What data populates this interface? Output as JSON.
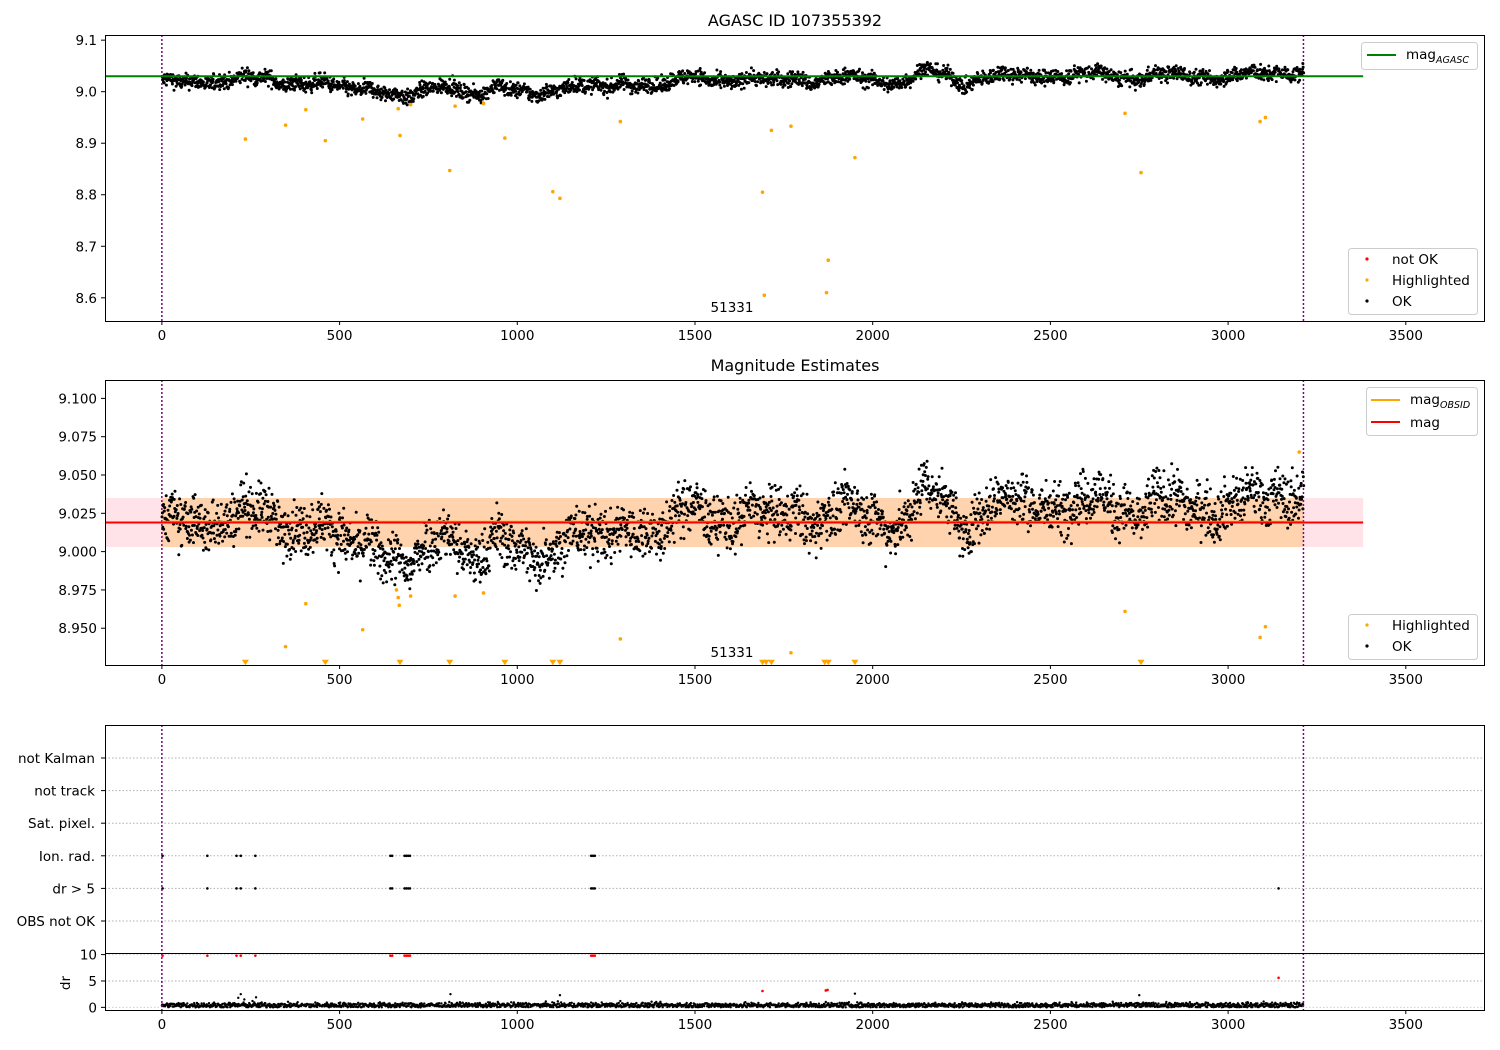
{
  "chart_data": [
    {
      "type": "scatter",
      "title": "AGASC ID 107355392",
      "xlim": [
        -160,
        3720
      ],
      "ylim": [
        8.555,
        9.11
      ],
      "xticks": [
        0,
        500,
        1000,
        1500,
        2000,
        2500,
        3000,
        3500
      ],
      "yticks": [
        8.6,
        8.7,
        8.8,
        8.9,
        9.0,
        9.1
      ],
      "ytick_labels": [
        "8.6",
        "8.7",
        "8.8",
        "8.9",
        "9.0",
        "9.1"
      ],
      "vlines_x": [
        0,
        3212
      ],
      "annotation": {
        "text": "51331",
        "x": 1610,
        "y": 8.57
      },
      "reference_lines": [
        {
          "name": "mag",
          "subscript": "AGASC",
          "y": 9.03,
          "x_range": [
            -160,
            3380
          ],
          "color": "#008000"
        }
      ],
      "series": [
        {
          "name": "not OK",
          "color": "#ff0000",
          "points": []
        },
        {
          "name": "Highlighted",
          "color": "#ffa500",
          "points": [
            [
              235,
              8.908
            ],
            [
              348,
              8.935
            ],
            [
              405,
              8.965
            ],
            [
              460,
              8.905
            ],
            [
              565,
              8.947
            ],
            [
              665,
              8.967
            ],
            [
              670,
              8.915
            ],
            [
              700,
              8.975
            ],
            [
              810,
              8.847
            ],
            [
              825,
              8.972
            ],
            [
              905,
              8.977
            ],
            [
              965,
              8.91
            ],
            [
              1100,
              8.806
            ],
            [
              1120,
              8.793
            ],
            [
              1290,
              8.942
            ],
            [
              1690,
              8.805
            ],
            [
              1695,
              8.605
            ],
            [
              1715,
              8.925
            ],
            [
              1770,
              8.933
            ],
            [
              1870,
              8.61
            ],
            [
              1875,
              8.673
            ],
            [
              1950,
              8.872
            ],
            [
              2710,
              8.958
            ],
            [
              2755,
              8.843
            ],
            [
              3090,
              8.942
            ],
            [
              3105,
              8.95
            ]
          ]
        },
        {
          "name": "OK",
          "color": "#000000",
          "segments": [
            [
              0,
              9.022
            ],
            [
              80,
              9.015
            ],
            [
              150,
              9.02
            ],
            [
              220,
              9.03
            ],
            [
              280,
              9.025
            ],
            [
              340,
              9.012
            ],
            [
              400,
              9.02
            ],
            [
              460,
              9.02
            ],
            [
              520,
              9.0
            ],
            [
              580,
              9.005
            ],
            [
              640,
              9.0
            ],
            [
              700,
              8.99
            ],
            [
              760,
              9.005
            ],
            [
              820,
              9.01
            ],
            [
              880,
              8.995
            ],
            [
              940,
              9.01
            ],
            [
              1000,
              8.998
            ],
            [
              1060,
              8.995
            ],
            [
              1120,
              9.01
            ],
            [
              1180,
              9.012
            ],
            [
              1240,
              9.005
            ],
            [
              1300,
              9.018
            ],
            [
              1360,
              9.015
            ],
            [
              1420,
              9.012
            ],
            [
              1480,
              9.03
            ],
            [
              1540,
              9.025
            ],
            [
              1600,
              9.02
            ],
            [
              1660,
              9.025
            ],
            [
              1720,
              9.02
            ],
            [
              1780,
              9.03
            ],
            [
              1840,
              9.018
            ],
            [
              1900,
              9.025
            ],
            [
              1960,
              9.028
            ],
            [
              2020,
              9.022
            ],
            [
              2080,
              9.015
            ],
            [
              2140,
              9.04
            ],
            [
              2200,
              9.035
            ],
            [
              2260,
              9.015
            ],
            [
              2320,
              9.03
            ],
            [
              2380,
              9.032
            ],
            [
              2440,
              9.03
            ],
            [
              2500,
              9.033
            ],
            [
              2560,
              9.03
            ],
            [
              2620,
              9.035
            ],
            [
              2680,
              9.03
            ],
            [
              2740,
              9.025
            ],
            [
              2800,
              9.035
            ],
            [
              2860,
              9.03
            ],
            [
              2920,
              9.028
            ],
            [
              2980,
              9.03
            ],
            [
              3040,
              9.035
            ],
            [
              3100,
              9.032
            ],
            [
              3150,
              9.035
            ],
            [
              3200,
              9.04
            ]
          ]
        }
      ],
      "legends": [
        {
          "placement": "upper right",
          "entries": [
            {
              "label": "mag",
              "subscript": "AGASC",
              "kind": "line",
              "color": "#008000"
            }
          ]
        },
        {
          "placement": "lower right",
          "entries": [
            {
              "label": "not OK",
              "kind": "marker",
              "color": "#ff0000"
            },
            {
              "label": "Highlighted",
              "kind": "marker",
              "color": "#ffa500"
            },
            {
              "label": "OK",
              "kind": "marker",
              "color": "#000000"
            }
          ]
        }
      ]
    },
    {
      "type": "scatter",
      "title": "Magnitude Estimates",
      "xlim": [
        -160,
        3720
      ],
      "ylim": [
        8.926,
        9.112
      ],
      "xticks": [
        0,
        500,
        1000,
        1500,
        2000,
        2500,
        3000,
        3500
      ],
      "yticks": [
        8.95,
        8.975,
        9.0,
        9.025,
        9.05,
        9.075,
        9.1
      ],
      "ytick_labels": [
        "8.950",
        "8.975",
        "9.000",
        "9.025",
        "9.050",
        "9.075",
        "9.100"
      ],
      "vlines_x": [
        0,
        3212
      ],
      "annotation": {
        "text": "51331",
        "x": 1610,
        "y": 8.933
      },
      "bands": [
        {
          "y_range": [
            9.003,
            9.035
          ],
          "x_range": [
            -160,
            3380
          ],
          "color": "#ffc0cb",
          "opacity": 0.45
        },
        {
          "y_range": [
            9.003,
            9.035
          ],
          "x_range": [
            0,
            3212
          ],
          "color": "#ffa500",
          "opacity": 0.25
        }
      ],
      "reference_lines": [
        {
          "name": "mag",
          "subscript": "OBSID",
          "y": 9.0195,
          "x_range": [
            0,
            3212
          ],
          "color": "#ffa500"
        },
        {
          "name": "mag",
          "y": 9.019,
          "x_range": [
            -160,
            3380
          ],
          "color": "#ff0000"
        }
      ],
      "offscale_markers": {
        "y": 8.9275,
        "x": [
          235,
          460,
          670,
          810,
          965,
          1100,
          1120,
          1690,
          1700,
          1715,
          1865,
          1875,
          1950,
          2755
        ],
        "color": "#ffa500"
      },
      "series": [
        {
          "name": "Highlighted",
          "color": "#ffa500",
          "points": [
            [
              348,
              8.938
            ],
            [
              405,
              8.966
            ],
            [
              565,
              8.949
            ],
            [
              660,
              8.975
            ],
            [
              665,
              8.97
            ],
            [
              668,
              8.965
            ],
            [
              700,
              8.971
            ],
            [
              825,
              8.971
            ],
            [
              905,
              8.973
            ],
            [
              1290,
              8.943
            ],
            [
              1770,
              8.934
            ],
            [
              2710,
              8.961
            ],
            [
              3090,
              8.944
            ],
            [
              3105,
              8.951
            ],
            [
              3200,
              9.065
            ]
          ]
        },
        {
          "name": "OK",
          "color": "#000000",
          "segments": [
            [
              0,
              9.022
            ],
            [
              80,
              9.015
            ],
            [
              150,
              9.02
            ],
            [
              220,
              9.03
            ],
            [
              280,
              9.025
            ],
            [
              340,
              9.012
            ],
            [
              400,
              9.02
            ],
            [
              460,
              9.02
            ],
            [
              520,
              9.0
            ],
            [
              580,
              9.005
            ],
            [
              640,
              9.0
            ],
            [
              700,
              8.99
            ],
            [
              760,
              9.005
            ],
            [
              820,
              9.01
            ],
            [
              880,
              8.995
            ],
            [
              940,
              9.01
            ],
            [
              1000,
              8.998
            ],
            [
              1060,
              8.995
            ],
            [
              1120,
              9.01
            ],
            [
              1180,
              9.012
            ],
            [
              1240,
              9.005
            ],
            [
              1300,
              9.018
            ],
            [
              1360,
              9.015
            ],
            [
              1420,
              9.012
            ],
            [
              1480,
              9.03
            ],
            [
              1540,
              9.025
            ],
            [
              1600,
              9.02
            ],
            [
              1660,
              9.025
            ],
            [
              1720,
              9.02
            ],
            [
              1780,
              9.03
            ],
            [
              1840,
              9.018
            ],
            [
              1900,
              9.025
            ],
            [
              1960,
              9.028
            ],
            [
              2020,
              9.022
            ],
            [
              2080,
              9.015
            ],
            [
              2140,
              9.04
            ],
            [
              2200,
              9.035
            ],
            [
              2260,
              9.015
            ],
            [
              2320,
              9.03
            ],
            [
              2380,
              9.032
            ],
            [
              2440,
              9.03
            ],
            [
              2500,
              9.033
            ],
            [
              2560,
              9.03
            ],
            [
              2620,
              9.035
            ],
            [
              2680,
              9.03
            ],
            [
              2740,
              9.025
            ],
            [
              2800,
              9.035
            ],
            [
              2860,
              9.03
            ],
            [
              2920,
              9.028
            ],
            [
              2980,
              9.03
            ],
            [
              3040,
              9.035
            ],
            [
              3100,
              9.032
            ],
            [
              3150,
              9.035
            ],
            [
              3200,
              9.04
            ]
          ]
        }
      ],
      "legends": [
        {
          "placement": "upper right",
          "entries": [
            {
              "label": "mag",
              "subscript": "OBSID",
              "kind": "line",
              "color": "#ffa500"
            },
            {
              "label": "mag",
              "kind": "line",
              "color": "#ff0000"
            }
          ]
        },
        {
          "placement": "lower right",
          "entries": [
            {
              "label": "Highlighted",
              "kind": "marker",
              "color": "#ffa500"
            },
            {
              "label": "OK",
              "kind": "marker",
              "color": "#000000"
            }
          ]
        }
      ]
    },
    {
      "type": "scatter",
      "title": "",
      "xlim": [
        -160,
        3720
      ],
      "categories": [
        "not Kalman",
        "not track",
        "Sat. pixel.",
        "Ion. rad.",
        "dr > 5",
        "OBS not OK"
      ],
      "vlines_x": [
        0,
        3212
      ],
      "flags": {
        "not Kalman": [],
        "not track": [],
        "Sat. pixel.": [],
        "Ion. rad.": [
          2,
          128,
          210,
          222,
          263,
          643,
          648,
          683,
          688,
          693,
          698,
          1208,
          1213,
          1218
        ],
        "dr > 5": [
          2,
          128,
          210,
          222,
          263,
          643,
          648,
          683,
          688,
          693,
          698,
          1208,
          1213,
          1218,
          3142
        ],
        "OBS not OK": []
      }
    },
    {
      "type": "scatter",
      "title": "",
      "xlim": [
        -160,
        3720
      ],
      "ylim": [
        -0.5,
        10.3
      ],
      "xticks": [
        0,
        500,
        1000,
        1500,
        2000,
        2500,
        3000,
        3500
      ],
      "yticks": [
        0,
        5,
        10
      ],
      "ylabel": "dr",
      "threshold_line": 5,
      "series": [
        {
          "name": "not OK",
          "color": "#ff0000",
          "points": [
            [
              2,
              9.8
            ],
            [
              128,
              9.8
            ],
            [
              210,
              9.8
            ],
            [
              222,
              9.8
            ],
            [
              263,
              9.8
            ],
            [
              643,
              9.8
            ],
            [
              648,
              9.8
            ],
            [
              683,
              9.8
            ],
            [
              688,
              9.8
            ],
            [
              693,
              9.8
            ],
            [
              698,
              9.8
            ],
            [
              1208,
              9.8
            ],
            [
              1213,
              9.8
            ],
            [
              1218,
              9.8
            ],
            [
              1690,
              3.1
            ],
            [
              1868,
              3.2
            ],
            [
              1873,
              3.3
            ],
            [
              3142,
              5.6
            ]
          ]
        },
        {
          "name": "OK",
          "color": "#000000",
          "points": [
            [
              215,
              1.8
            ],
            [
              222,
              2.5
            ],
            [
              232,
              1.5
            ],
            [
              255,
              1.2
            ],
            [
              265,
              1.9
            ],
            [
              812,
              2.5
            ],
            [
              1120,
              2.3
            ],
            [
              1290,
              1.2
            ],
            [
              1950,
              2.6
            ],
            [
              2750,
              2.3
            ],
            [
              3100,
              1.1
            ]
          ],
          "baseline_range": [
            0,
            1.0
          ]
        }
      ]
    }
  ]
}
